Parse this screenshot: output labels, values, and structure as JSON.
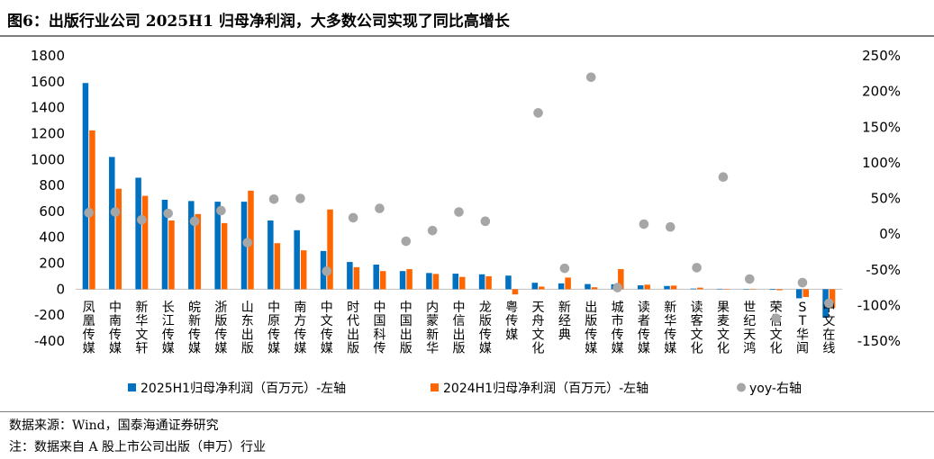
{
  "header": {
    "title": "图6：出版行业公司 2025H1 归母净利润，大多数公司实现了同比高增长"
  },
  "footer": {
    "source": "数据来源：Wind，国泰海通证券研究",
    "note": "注：数据来自 A 股上市公司出版（申万）行业"
  },
  "chart_data": {
    "type": "bar",
    "categories": [
      "凤凰传媒",
      "中南传媒",
      "新华文轩",
      "长江传媒",
      "皖新传媒",
      "浙版传媒",
      "山东出版",
      "中原传媒",
      "南方传媒",
      "中文传媒",
      "时代出版",
      "中国科传",
      "中国出版",
      "内蒙新华",
      "中信出版",
      "龙版传媒",
      "粤传媒",
      "天舟文化",
      "新经典",
      "出版传媒",
      "城市传媒",
      "读者传媒",
      "新华传媒",
      "读客文化",
      "果麦文化",
      "世纪天鸿",
      "荣信文化",
      "ST华闻",
      "中文在线"
    ],
    "series": [
      {
        "name": "2025H1归母净利润（百万元）-左轴",
        "axis": "left",
        "color": "#0070c0",
        "values": [
          1590,
          1020,
          860,
          690,
          680,
          675,
          675,
          530,
          455,
          295,
          210,
          190,
          140,
          125,
          120,
          115,
          105,
          50,
          45,
          40,
          38,
          30,
          25,
          5,
          3,
          2,
          -5,
          -70,
          -220
        ]
      },
      {
        "name": "2024H1归母净利润（百万元）-左轴",
        "axis": "left",
        "color": "#ff6600",
        "values": [
          1225,
          775,
          720,
          530,
          580,
          510,
          760,
          355,
          300,
          615,
          170,
          140,
          155,
          118,
          95,
          100,
          -40,
          20,
          90,
          15,
          155,
          35,
          28,
          12,
          2,
          3,
          -8,
          -60,
          -145
        ]
      },
      {
        "name": "yoy-右轴",
        "axis": "right",
        "color": "#a6a6a6",
        "type": "scatter",
        "values": [
          30,
          31,
          20,
          29,
          18,
          33,
          -12,
          49,
          50,
          -52,
          23,
          36,
          -10,
          5,
          31,
          18,
          null,
          170,
          -48,
          220,
          -75,
          14,
          10,
          -47,
          80,
          -63,
          -118,
          -68,
          -97
        ]
      }
    ],
    "ylim_left": [
      -400,
      1800
    ],
    "ytick_step_left": 200,
    "ylim_right": [
      -150,
      250
    ],
    "ytick_step_right": 50,
    "right_axis_unit": "%",
    "grid": false,
    "legend": "bottom"
  }
}
